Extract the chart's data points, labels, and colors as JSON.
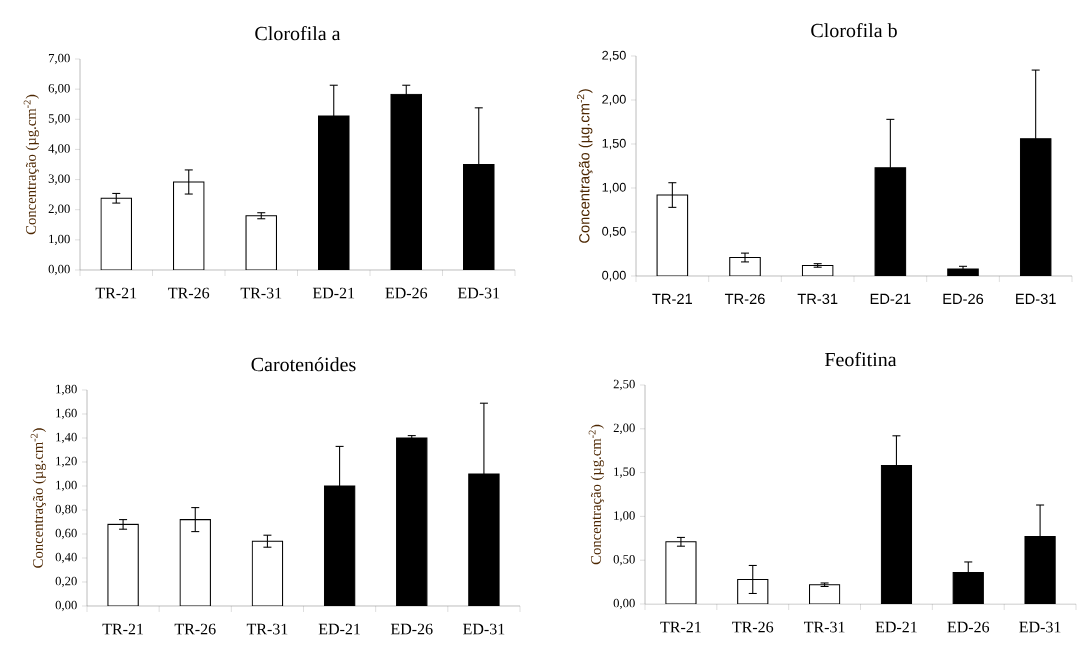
{
  "chart_data": [
    {
      "type": "bar",
      "title": "Clorofila a",
      "ylabel": "Concentração (µg.cm$^{-2}$)",
      "categories": [
        "TR-21",
        "TR-26",
        "TR-31",
        "ED-21",
        "ED-26",
        "ED-31"
      ],
      "values": [
        2.38,
        2.92,
        1.8,
        5.11,
        5.83,
        3.5
      ],
      "errors": [
        0.16,
        0.4,
        0.1,
        1.02,
        0.3,
        1.88
      ],
      "colors": [
        "#ffffff",
        "#ffffff",
        "#ffffff",
        "#000000",
        "#000000",
        "#000000"
      ],
      "ylim": [
        0,
        7
      ],
      "yticks": [
        {
          "value": 0,
          "label": "0,00"
        },
        {
          "value": 1,
          "label": "1,00"
        },
        {
          "value": 2,
          "label": "2,00"
        },
        {
          "value": 3,
          "label": "3,00"
        },
        {
          "value": 4,
          "label": "4,00"
        },
        {
          "value": 5,
          "label": "5,00"
        },
        {
          "value": 6,
          "label": "6,00"
        },
        {
          "value": 7,
          "label": "7,00"
        }
      ]
    },
    {
      "type": "bar",
      "title": "Clorofila b",
      "ylabel": "Concentração (µg.cm$^{-2}$)",
      "categories": [
        "TR-21",
        "TR-26",
        "TR-31",
        "ED-21",
        "ED-26",
        "ED-31"
      ],
      "values": [
        0.92,
        0.21,
        0.12,
        1.23,
        0.08,
        1.56
      ],
      "errors": [
        0.14,
        0.05,
        0.02,
        0.55,
        0.03,
        0.78
      ],
      "colors": [
        "#ffffff",
        "#ffffff",
        "#ffffff",
        "#000000",
        "#000000",
        "#000000"
      ],
      "ylim": [
        0,
        2.5
      ],
      "yticks": [
        {
          "value": 0,
          "label": "0,00"
        },
        {
          "value": 0.5,
          "label": "0,50"
        },
        {
          "value": 1,
          "label": "1,00"
        },
        {
          "value": 1.5,
          "label": "1,50"
        },
        {
          "value": 2,
          "label": "2,00"
        },
        {
          "value": 2.5,
          "label": "2,50"
        }
      ]
    },
    {
      "type": "bar",
      "title": "Carotenóides",
      "ylabel": "Concentração (µg.cm$^{-2}$)",
      "categories": [
        "TR-21",
        "TR-26",
        "TR-31",
        "ED-21",
        "ED-26",
        "ED-31"
      ],
      "values": [
        0.68,
        0.72,
        0.54,
        1.0,
        1.4,
        1.1
      ],
      "errors": [
        0.04,
        0.1,
        0.05,
        0.33,
        0.02,
        0.59
      ],
      "colors": [
        "#ffffff",
        "#ffffff",
        "#ffffff",
        "#000000",
        "#000000",
        "#000000"
      ],
      "ylim": [
        0,
        1.8
      ],
      "yticks": [
        {
          "value": 0,
          "label": "0,00"
        },
        {
          "value": 0.2,
          "label": "0,20"
        },
        {
          "value": 0.4,
          "label": "0,40"
        },
        {
          "value": 0.6,
          "label": "0,60"
        },
        {
          "value": 0.8,
          "label": "0,80"
        },
        {
          "value": 1,
          "label": "1,00"
        },
        {
          "value": 1.2,
          "label": "1,20"
        },
        {
          "value": 1.4,
          "label": "1,40"
        },
        {
          "value": 1.6,
          "label": "1,60"
        },
        {
          "value": 1.8,
          "label": "1,80"
        }
      ]
    },
    {
      "type": "bar",
      "title": "Feofitina",
      "ylabel": "Concentração (µg.cm$^{-2}$)",
      "categories": [
        "TR-21",
        "TR-26",
        "TR-31",
        "ED-21",
        "ED-26",
        "ED-31"
      ],
      "values": [
        0.71,
        0.28,
        0.22,
        1.58,
        0.36,
        0.77
      ],
      "errors": [
        0.05,
        0.16,
        0.02,
        0.34,
        0.12,
        0.36
      ],
      "colors": [
        "#ffffff",
        "#ffffff",
        "#ffffff",
        "#000000",
        "#000000",
        "#000000"
      ],
      "ylim": [
        0,
        2.5
      ],
      "yticks": [
        {
          "value": 0,
          "label": "0,00"
        },
        {
          "value": 0.5,
          "label": "0,50"
        },
        {
          "value": 1,
          "label": "1,00"
        },
        {
          "value": 1.5,
          "label": "1,50"
        },
        {
          "value": 2,
          "label": "2,00"
        },
        {
          "value": 2.5,
          "label": "2,50"
        }
      ]
    }
  ]
}
